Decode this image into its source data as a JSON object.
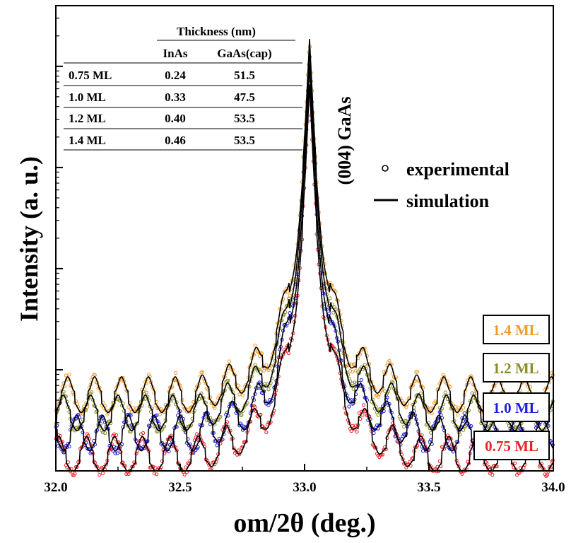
{
  "chart_data": {
    "type": "line",
    "title": "",
    "xlabel": "om/2θ (deg.)",
    "ylabel": "Intensity (a. u.)",
    "xlim": [
      32.0,
      34.0
    ],
    "x_ticks": [
      "32.0",
      "32.5",
      "33.0",
      "33.5",
      "34.0"
    ],
    "x_tick_values": [
      32.0,
      32.5,
      33.0,
      33.5,
      34.0
    ],
    "y_scale": "log",
    "y_tick_labels": "none",
    "peak_label": "(004) GaAs",
    "peak_position": 33.02,
    "legend": {
      "placement": "right",
      "entries": [
        {
          "label": "experimental",
          "marker": "open-circle"
        },
        {
          "label": "simulation",
          "marker": "line"
        }
      ]
    },
    "series": [
      {
        "name": "1.4 ML",
        "color": "#f39a2b",
        "baseline": 0.71,
        "peak": 4.3,
        "fringe_period": 0.108,
        "fringe_amplitude": 0.22
      },
      {
        "name": "1.2 ML",
        "color": "#8b8b2a",
        "baseline": 0.53,
        "peak": 4.2,
        "fringe_period": 0.11,
        "fringe_amplitude": 0.22
      },
      {
        "name": "1.0 ML",
        "color": "#1f1fe0",
        "baseline": 0.33,
        "peak": 4.05,
        "fringe_period": 0.104,
        "fringe_amplitude": 0.22
      },
      {
        "name": "0.75 ML",
        "color": "#e82424",
        "baseline": 0.12,
        "peak": 3.85,
        "fringe_period": 0.112,
        "fringe_amplitude": 0.22
      }
    ],
    "inset_table": {
      "group_header": "Thickness (nm)",
      "columns": [
        "",
        "InAs",
        "GaAs(cap)"
      ],
      "rows": [
        [
          "0.75 ML",
          "0.24",
          "51.5"
        ],
        [
          "1.0 ML",
          "0.33",
          "47.5"
        ],
        [
          "1.2 ML",
          "0.40",
          "53.5"
        ],
        [
          "1.4 ML",
          "0.46",
          "53.5"
        ]
      ]
    }
  }
}
